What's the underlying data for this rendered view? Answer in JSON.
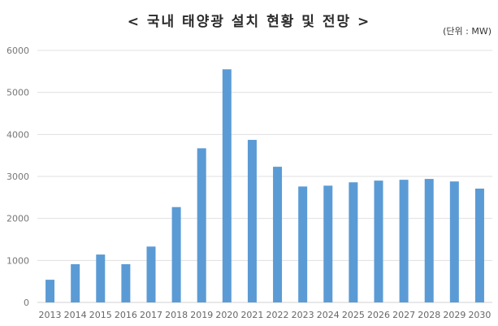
{
  "chart_data": {
    "type": "bar",
    "title": "< 국내 태양광 설치 현황 및 전망 >",
    "unit_label": "(단위 : MW)",
    "xlabel": "",
    "ylabel": "",
    "ylim": [
      0,
      6000
    ],
    "yticks": [
      0,
      1000,
      2000,
      3000,
      4000,
      5000,
      6000
    ],
    "grid": true,
    "legend": null,
    "bar_color": "#5b9bd5",
    "categories": [
      "2013",
      "2014",
      "2015",
      "2016",
      "2017",
      "2018",
      "2019",
      "2020",
      "2021",
      "2022",
      "2023",
      "2024",
      "2025",
      "2026",
      "2027",
      "2028",
      "2029",
      "2030"
    ],
    "values": [
      540,
      910,
      1140,
      910,
      1330,
      2270,
      3670,
      5550,
      3870,
      3230,
      2760,
      2780,
      2860,
      2900,
      2920,
      2940,
      2880,
      2710
    ]
  }
}
